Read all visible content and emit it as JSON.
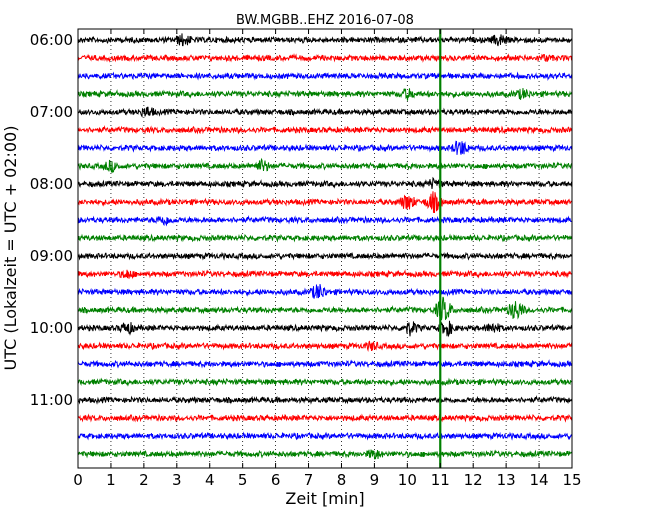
{
  "chart_data": {
    "type": "line",
    "title": "BW.MGBB..EHZ 2016-07-08",
    "xlabel": "Zeit  [min]",
    "ylabel": "UTC (Lokalzeit = UTC + 02:00)",
    "xlim": [
      0,
      15
    ],
    "x_ticks": [
      "0",
      "1",
      "2",
      "3",
      "4",
      "5",
      "6",
      "7",
      "8",
      "9",
      "10",
      "11",
      "12",
      "13",
      "14",
      "15"
    ],
    "y_ticks": [
      "06:00",
      "07:00",
      "08:00",
      "09:00",
      "10:00",
      "11:00"
    ],
    "grid": true,
    "grid_style": "dotted vertical lines at each minute",
    "trace_interval_minutes": 15,
    "trace_colors": [
      "#000000",
      "#ff0000",
      "#0000ff",
      "#008000"
    ],
    "event_marker": {
      "x_minute": 11.0,
      "color": "#008000"
    },
    "traces": [
      {
        "start": "06:00",
        "color": "black",
        "events": [
          {
            "t": 3.2,
            "amp": 6
          },
          {
            "t": 12.8,
            "amp": 6
          }
        ]
      },
      {
        "start": "06:15",
        "color": "red",
        "events": [
          {
            "t": 14.2,
            "amp": 3
          }
        ]
      },
      {
        "start": "06:30",
        "color": "blue",
        "events": []
      },
      {
        "start": "06:45",
        "color": "green",
        "events": [
          {
            "t": 10.0,
            "amp": 5
          },
          {
            "t": 13.5,
            "amp": 5
          }
        ]
      },
      {
        "start": "07:00",
        "color": "black",
        "events": [
          {
            "t": 2.1,
            "amp": 5
          }
        ]
      },
      {
        "start": "07:15",
        "color": "red",
        "events": []
      },
      {
        "start": "07:30",
        "color": "blue",
        "events": [
          {
            "t": 11.6,
            "amp": 8
          }
        ]
      },
      {
        "start": "07:45",
        "color": "green",
        "events": [
          {
            "t": 1.0,
            "amp": 5
          },
          {
            "t": 5.6,
            "amp": 6
          }
        ]
      },
      {
        "start": "08:00",
        "color": "black",
        "events": [
          {
            "t": 10.8,
            "amp": 5
          }
        ]
      },
      {
        "start": "08:15",
        "color": "red",
        "events": [
          {
            "t": 10.0,
            "amp": 8
          },
          {
            "t": 10.8,
            "amp": 10
          }
        ]
      },
      {
        "start": "08:30",
        "color": "blue",
        "events": [
          {
            "t": 2.6,
            "amp": 5
          }
        ]
      },
      {
        "start": "08:45",
        "color": "green",
        "events": []
      },
      {
        "start": "09:00",
        "color": "black",
        "events": []
      },
      {
        "start": "09:15",
        "color": "red",
        "events": [
          {
            "t": 1.5,
            "amp": 4
          }
        ]
      },
      {
        "start": "09:30",
        "color": "blue",
        "events": [
          {
            "t": 7.3,
            "amp": 8
          }
        ]
      },
      {
        "start": "09:45",
        "color": "green",
        "events": [
          {
            "t": 11.1,
            "amp": 12
          },
          {
            "t": 13.3,
            "amp": 10
          }
        ]
      },
      {
        "start": "10:00",
        "color": "black",
        "events": [
          {
            "t": 1.5,
            "amp": 6
          },
          {
            "t": 10.1,
            "amp": 7
          },
          {
            "t": 11.2,
            "amp": 7
          },
          {
            "t": 12.6,
            "amp": 5
          }
        ]
      },
      {
        "start": "10:15",
        "color": "red",
        "events": [
          {
            "t": 8.9,
            "amp": 4
          }
        ]
      },
      {
        "start": "10:30",
        "color": "blue",
        "events": []
      },
      {
        "start": "10:45",
        "color": "green",
        "events": []
      },
      {
        "start": "11:00",
        "color": "black",
        "events": []
      },
      {
        "start": "11:15",
        "color": "red",
        "events": []
      },
      {
        "start": "11:30",
        "color": "blue",
        "events": []
      },
      {
        "start": "11:45",
        "color": "green",
        "events": [
          {
            "t": 9.0,
            "amp": 5
          }
        ]
      }
    ]
  }
}
